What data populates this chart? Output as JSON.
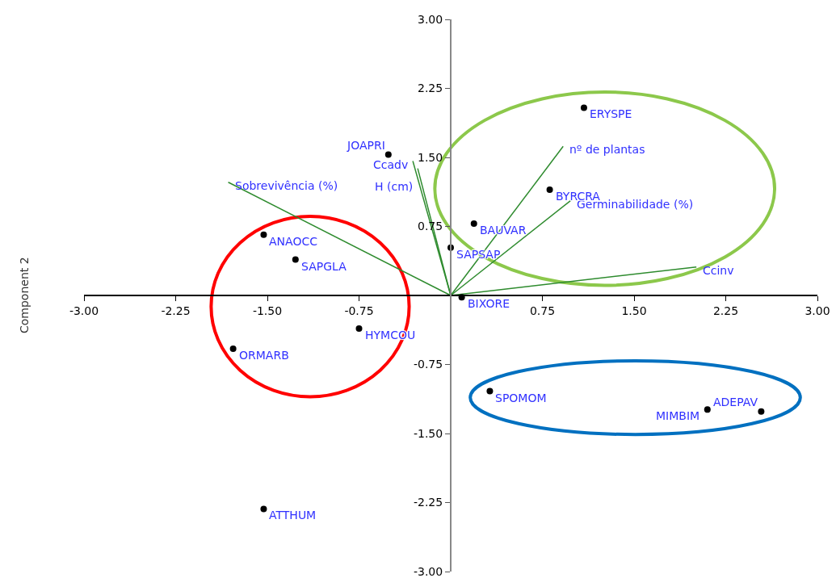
{
  "chart_data": {
    "type": "scatter",
    "ylabel": "Component 2",
    "xlim": [
      -3,
      3
    ],
    "ylim": [
      -3,
      3
    ],
    "xticks": [
      {
        "value": -3,
        "label": "-3.00"
      },
      {
        "value": -2.25,
        "label": "-2.25"
      },
      {
        "value": -1.5,
        "label": "-1.50"
      },
      {
        "value": -0.75,
        "label": "-0.75"
      },
      {
        "value": 0.75,
        "label": "0.75"
      },
      {
        "value": 1.5,
        "label": "1.50"
      },
      {
        "value": 2.25,
        "label": "2.25"
      },
      {
        "value": 3,
        "label": "3.00"
      }
    ],
    "yticks": [
      {
        "value": 3,
        "label": "3.00"
      },
      {
        "value": 2.25,
        "label": "2.25"
      },
      {
        "value": 1.5,
        "label": "1.50"
      },
      {
        "value": 0.75,
        "label": "0.75"
      },
      {
        "value": -0.75,
        "label": "-0.75"
      },
      {
        "value": -1.5,
        "label": "-1.50"
      },
      {
        "value": -2.25,
        "label": "-2.25"
      },
      {
        "value": -3,
        "label": "-3.00"
      }
    ],
    "series": [
      {
        "type": "scatter",
        "color": "#000000",
        "marker": "circle",
        "x": [
          1.09,
          -0.51,
          0.81,
          0.19,
          0.0,
          -1.53,
          -1.27,
          0.09,
          -0.75,
          -1.78,
          0.32,
          2.1,
          2.54,
          -1.53
        ],
        "values": [
          2.04,
          1.53,
          1.15,
          0.78,
          0.52,
          0.66,
          0.39,
          -0.02,
          -0.36,
          -0.58,
          -1.04,
          -1.24,
          -1.26,
          -2.32
        ]
      },
      {
        "type": "line",
        "name": "Sobrevivência (%)",
        "color": "#2e8b2e",
        "x": [
          0,
          -1.82
        ],
        "values": [
          0,
          1.23
        ]
      },
      {
        "type": "line",
        "name": "Ccadv",
        "color": "#2e8b2e",
        "x": [
          0,
          -0.31
        ],
        "values": [
          0,
          1.46
        ]
      },
      {
        "type": "line",
        "name": "H (cm)",
        "color": "#2e8b2e",
        "x": [
          0,
          -0.27
        ],
        "values": [
          0,
          1.38
        ]
      },
      {
        "type": "line",
        "name": "nº de plantas",
        "color": "#2e8b2e",
        "x": [
          0,
          0.92
        ],
        "values": [
          0,
          1.62
        ]
      },
      {
        "type": "line",
        "name": "Germinabilidade (%)",
        "color": "#2e8b2e",
        "x": [
          0,
          0.98
        ],
        "values": [
          0,
          1.03
        ]
      },
      {
        "type": "line",
        "name": "Ccinv",
        "color": "#2e8b2e",
        "x": [
          0,
          2.01
        ],
        "values": [
          0,
          0.31
        ]
      }
    ],
    "annotations": [
      {
        "text": "ERYSPE",
        "x": 1.09,
        "y": 2.04
      },
      {
        "text": "JOAPRI",
        "x": -0.51,
        "y": 1.53
      },
      {
        "text": "BYRCRA",
        "x": 0.81,
        "y": 1.15
      },
      {
        "text": "BAUVAR",
        "x": 0.19,
        "y": 0.78
      },
      {
        "text": "SAPSAP",
        "x": 0.0,
        "y": 0.52
      },
      {
        "text": "ANAOCC",
        "x": -1.53,
        "y": 0.66
      },
      {
        "text": "SAPGLA",
        "x": -1.27,
        "y": 0.39
      },
      {
        "text": "BIXORE",
        "x": 0.09,
        "y": -0.02
      },
      {
        "text": "HYMCOU",
        "x": -0.75,
        "y": -0.36
      },
      {
        "text": "ORMARB",
        "x": -1.78,
        "y": -0.58
      },
      {
        "text": "SPOMOM",
        "x": 0.32,
        "y": -1.04
      },
      {
        "text": "MIMBIM",
        "x": 2.1,
        "y": -1.24
      },
      {
        "text": "ADEPAV",
        "x": 2.54,
        "y": -1.26
      },
      {
        "text": "ATTHUM",
        "x": -1.53,
        "y": -2.32
      }
    ]
  }
}
